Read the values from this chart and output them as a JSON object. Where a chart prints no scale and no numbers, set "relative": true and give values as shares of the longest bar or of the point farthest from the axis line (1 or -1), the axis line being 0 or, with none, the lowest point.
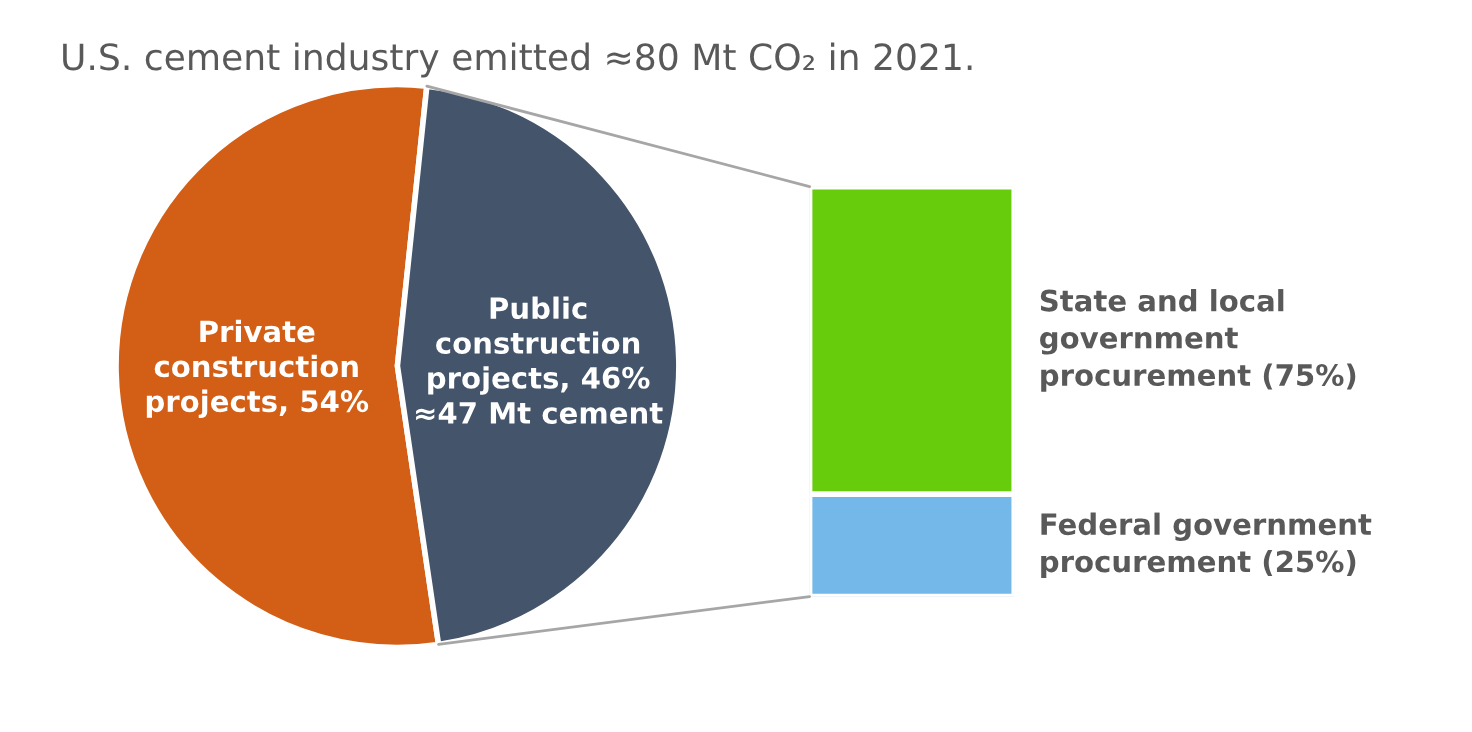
{
  "chart_data": [
    {
      "type": "pie",
      "title": "U.S. cement industry emitted ≈80 Mt CO₂ in 2021.",
      "categories": [
        "Private\nconstruction\nprojects, 54%",
        "Public\nconstruction\nprojects, 46%\n≈47 Mt cement"
      ],
      "values": [
        54,
        46
      ],
      "colors": [
        "#d35f16",
        "#44546a"
      ]
    },
    {
      "type": "bar",
      "stacked": true,
      "categories": [
        null
      ],
      "relative": true,
      "series": [
        {
          "name": "Federal government\nprocurement (25%)",
          "color": "#73b8e8",
          "values": [
            0.25
          ]
        },
        {
          "name": "State and local\ngovernment\nprocurement (75%)",
          "color": "#66cc0b",
          "values": [
            0.75
          ]
        }
      ]
    }
  ]
}
